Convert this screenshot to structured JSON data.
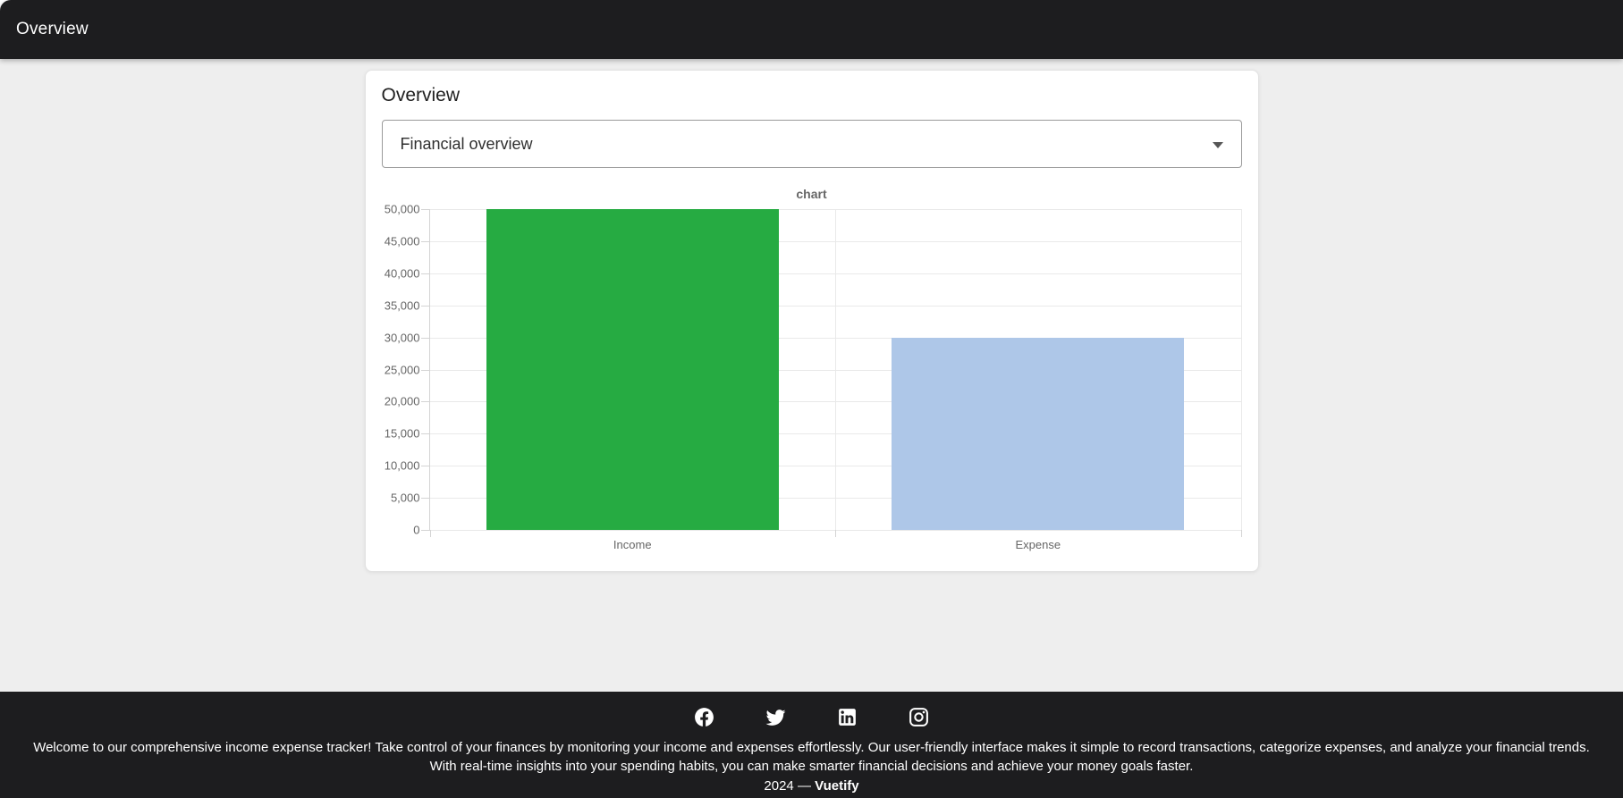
{
  "app_bar": {
    "title": "Overview"
  },
  "card": {
    "title": "Overview",
    "select": {
      "value": "Financial overview"
    }
  },
  "chart_data": {
    "type": "bar",
    "title": "chart",
    "categories": [
      "Income",
      "Expense"
    ],
    "values": [
      50000,
      30000
    ],
    "bar_colors": [
      "#26ab42",
      "#aec7e8"
    ],
    "ylim": [
      0,
      50000
    ],
    "y_ticks": {
      "values": [
        0,
        5000,
        10000,
        15000,
        20000,
        25000,
        30000,
        35000,
        40000,
        45000,
        50000
      ],
      "labels": [
        "0",
        "5,000",
        "10,000",
        "15,000",
        "20,000",
        "25,000",
        "30,000",
        "35,000",
        "40,000",
        "45,000",
        "50,000"
      ]
    },
    "xlabel": "",
    "ylabel": "",
    "grid": true,
    "legend_position": "none",
    "bar_fraction_of_category": 0.72
  },
  "footer": {
    "social_icons": [
      "facebook",
      "twitter",
      "linkedin",
      "instagram"
    ],
    "description": "Welcome to our comprehensive income expense tracker! Take control of your finances by monitoring your income and expenses effortlessly. Our user-friendly interface makes it simple to record transactions, categorize expenses, and analyze your financial trends. With real-time insights into your spending habits, you can make smarter financial decisions and achieve your money goals faster.",
    "copyright_prefix": "2024 —",
    "brand": "Vuetify"
  },
  "colors": {
    "app_bar_bg": "#1d1d1f",
    "footer_bg": "#1d1d1f",
    "page_bg": "#eeeeee",
    "card_bg": "#ffffff",
    "income_bar": "#26ab42",
    "expense_bar": "#aec7e8",
    "grid_line": "#e9e9e9",
    "axis_line": "#d4d4d4",
    "tick_text": "#666666"
  }
}
